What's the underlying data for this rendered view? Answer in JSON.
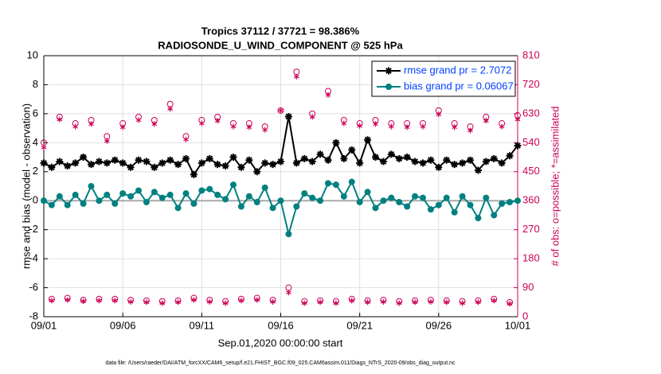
{
  "chart_data": {
    "type": "line",
    "title": "Tropics 37112 / 37721 = 98.386%",
    "subtitle": "RADIOSONDE_U_WIND_COMPONENT @ 525 hPa",
    "xlabel": "Sep.01,2020 00:00:00 start",
    "ylabel": "rmse and bias (model - observation)",
    "y2label": "# of obs: o=possible; *=assimilated",
    "footnote": "data file: /Users/raeder/DAI/ATM_forcXX/CAM6_setup/f.e21.FHIST_BGC.f09_025.CAM6assim.011/Diags_NTrS_2020-09/obs_diag_output.nc",
    "x": [
      0,
      0.5,
      1,
      1.5,
      2,
      2.5,
      3,
      3.5,
      4,
      4.5,
      5,
      5.5,
      6,
      6.5,
      7,
      7.5,
      8,
      8.5,
      9,
      9.5,
      10,
      10.5,
      11,
      11.5,
      12,
      12.5,
      13,
      13.5,
      14,
      14.5,
      15,
      15.5,
      16,
      16.5,
      17,
      17.5,
      18,
      18.5,
      19,
      19.5,
      20,
      20.5,
      21,
      21.5,
      22,
      22.5,
      23,
      23.5,
      24,
      24.5,
      25,
      25.5,
      26,
      26.5,
      27,
      27.5,
      28,
      28.5,
      29,
      29.5,
      30
    ],
    "xlim": [
      0,
      30
    ],
    "xticks": [
      {
        "value": 0,
        "label": "09/01"
      },
      {
        "value": 5,
        "label": "09/06"
      },
      {
        "value": 10,
        "label": "09/11"
      },
      {
        "value": 15,
        "label": "09/16"
      },
      {
        "value": 20,
        "label": "09/21"
      },
      {
        "value": 25,
        "label": "09/26"
      },
      {
        "value": 30,
        "label": "10/01"
      }
    ],
    "ylim": [
      -8,
      10
    ],
    "yticks": [
      -8,
      -6,
      -4,
      -2,
      0,
      2,
      4,
      6,
      8,
      10
    ],
    "y2lim": [
      0,
      810
    ],
    "y2ticks": [
      0,
      90,
      180,
      270,
      360,
      450,
      540,
      630,
      720,
      810
    ],
    "y2color": "#cc0055",
    "grid": true,
    "zero_line": true,
    "legend": "upper right",
    "legend_text_color": "#0040ff",
    "series": [
      {
        "name": "rmse grand pr = 2.7072",
        "color": "#000000",
        "marker": "star",
        "line": true,
        "values": [
          2.6,
          2.3,
          2.7,
          2.4,
          2.6,
          3.0,
          2.5,
          2.7,
          2.6,
          2.8,
          2.6,
          2.3,
          2.8,
          2.7,
          2.3,
          2.6,
          2.8,
          2.5,
          2.9,
          1.8,
          2.6,
          2.9,
          2.5,
          2.4,
          3.0,
          2.3,
          2.8,
          2.0,
          2.6,
          2.5,
          2.7,
          5.8,
          2.6,
          2.9,
          2.7,
          3.2,
          2.8,
          4.0,
          2.9,
          3.5,
          2.6,
          4.2,
          3.0,
          2.7,
          3.2,
          2.9,
          3.0,
          2.7,
          2.6,
          2.8,
          2.3,
          2.8,
          2.5,
          2.6,
          2.8,
          2.1,
          2.7,
          2.9,
          2.6,
          3.1,
          3.8
        ]
      },
      {
        "name": "bias grand pr = 0.06067",
        "color": "#008080",
        "marker": "dot",
        "line": true,
        "values": [
          0.0,
          -0.3,
          0.3,
          -0.3,
          0.4,
          -0.2,
          1.0,
          0.0,
          0.4,
          -0.2,
          0.5,
          0.3,
          0.7,
          -0.1,
          0.6,
          0.2,
          0.4,
          -0.5,
          0.5,
          -0.2,
          0.7,
          0.8,
          0.4,
          0.1,
          1.1,
          -0.4,
          0.3,
          -0.1,
          0.9,
          -0.5,
          0.0,
          -2.3,
          -0.4,
          0.5,
          0.2,
          0.0,
          1.2,
          1.1,
          0.3,
          1.3,
          -0.1,
          0.6,
          -0.5,
          0.0,
          0.2,
          -0.1,
          -0.4,
          0.3,
          0.2,
          -0.6,
          -0.3,
          0.2,
          -0.8,
          0.3,
          -0.3,
          -1.2,
          0.2,
          -1.0,
          -0.2,
          -0.1,
          0.0
        ]
      },
      {
        "color": "#cc0055",
        "marker": "circle",
        "line": false,
        "axis": "y2",
        "values": [
          540,
          55,
          620,
          58,
          600,
          52,
          610,
          55,
          560,
          55,
          600,
          52,
          620,
          50,
          610,
          48,
          660,
          50,
          560,
          58,
          610,
          52,
          620,
          48,
          600,
          55,
          600,
          58,
          590,
          52,
          640,
          90,
          760,
          48,
          630,
          50,
          700,
          48,
          610,
          55,
          600,
          50,
          610,
          52,
          600,
          48,
          600,
          50,
          600,
          52,
          640,
          50,
          600,
          48,
          590,
          50,
          620,
          55,
          600,
          45,
          625
        ]
      },
      {
        "color": "#cc0055",
        "marker": "asterisk",
        "line": false,
        "axis": "y2",
        "values": [
          525,
          50,
          612,
          52,
          590,
          48,
          598,
          50,
          545,
          50,
          588,
          46,
          610,
          45,
          598,
          42,
          645,
          45,
          550,
          52,
          600,
          46,
          608,
          42,
          590,
          50,
          588,
          52,
          580,
          46,
          640,
          75,
          745,
          42,
          620,
          45,
          688,
          42,
          600,
          50,
          592,
          45,
          598,
          46,
          590,
          42,
          588,
          45,
          590,
          46,
          628,
          45,
          588,
          42,
          578,
          45,
          608,
          50,
          590,
          40,
          612
        ]
      }
    ]
  }
}
